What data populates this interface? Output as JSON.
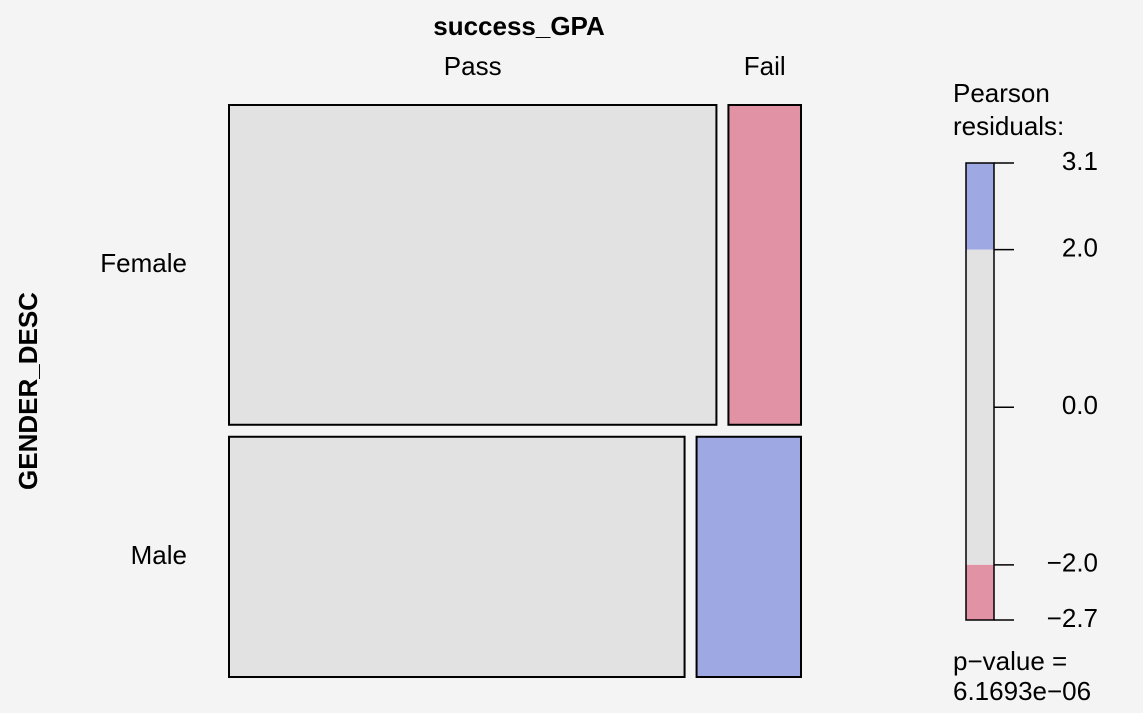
{
  "chart_data": {
    "type": "mosaic",
    "title": "success_GPA",
    "y_label": "GENDER_DESC",
    "categories": [
      "Female",
      "Male"
    ],
    "series": [
      {
        "name": "Pass",
        "values": [
          0.497,
          0.349
        ],
        "colors": [
          "#e2e2e2",
          "#e2e2e2"
        ]
      },
      {
        "name": "Fail",
        "values": [
          0.074,
          0.08
        ],
        "colors": [
          "#e292a5",
          "#9ea8e3"
        ]
      }
    ],
    "legend_title": [
      "Pearson",
      "residuals:"
    ],
    "ylim": [
      -2.7,
      3.1
    ],
    "yticks": [
      3.1,
      {
        "value": 2,
        "label": "2.0"
      },
      {
        "value": 0,
        "label": "0.0"
      },
      {
        "value": -2,
        "label": "−2.0"
      },
      {
        "value": -2.7,
        "label": "−2.7"
      }
    ],
    "legend_bands": [
      {
        "from": 2,
        "to": 3.1,
        "color": "#9ea8e3"
      },
      {
        "from": -2,
        "to": 2,
        "color": "#e2e2e2"
      },
      {
        "from": -2.7,
        "to": -2,
        "color": "#e292a5"
      }
    ],
    "p_value_label": "p−value =",
    "p_value": {
      "value": 6.1693e-06,
      "label": "6.1693e−06"
    }
  }
}
